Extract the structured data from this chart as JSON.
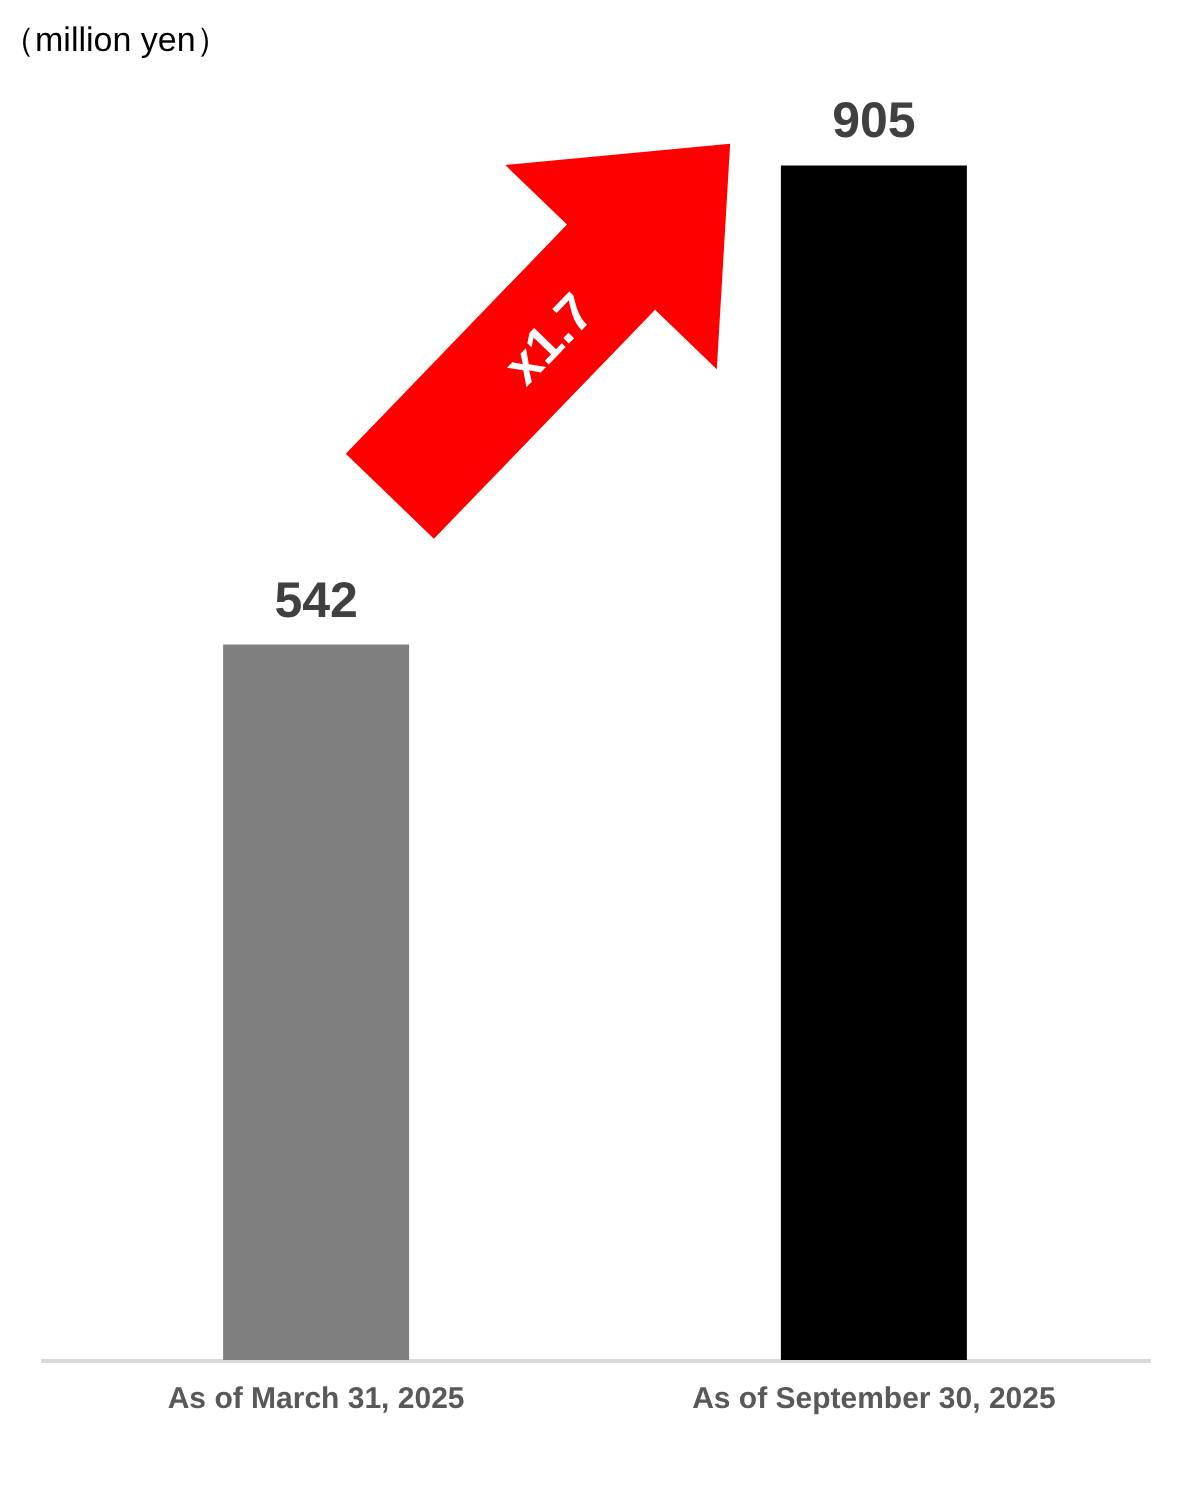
{
  "chart_data": {
    "type": "bar",
    "ylabel": "（million yen）",
    "categories": [
      "As of March 31, 2025",
      "As of September 30, 2025"
    ],
    "values": [
      542,
      905
    ],
    "colors": [
      "#7f7f7f",
      "#000000"
    ],
    "data_labels": true,
    "grid": false,
    "annotations": [
      "x1.7"
    ]
  }
}
